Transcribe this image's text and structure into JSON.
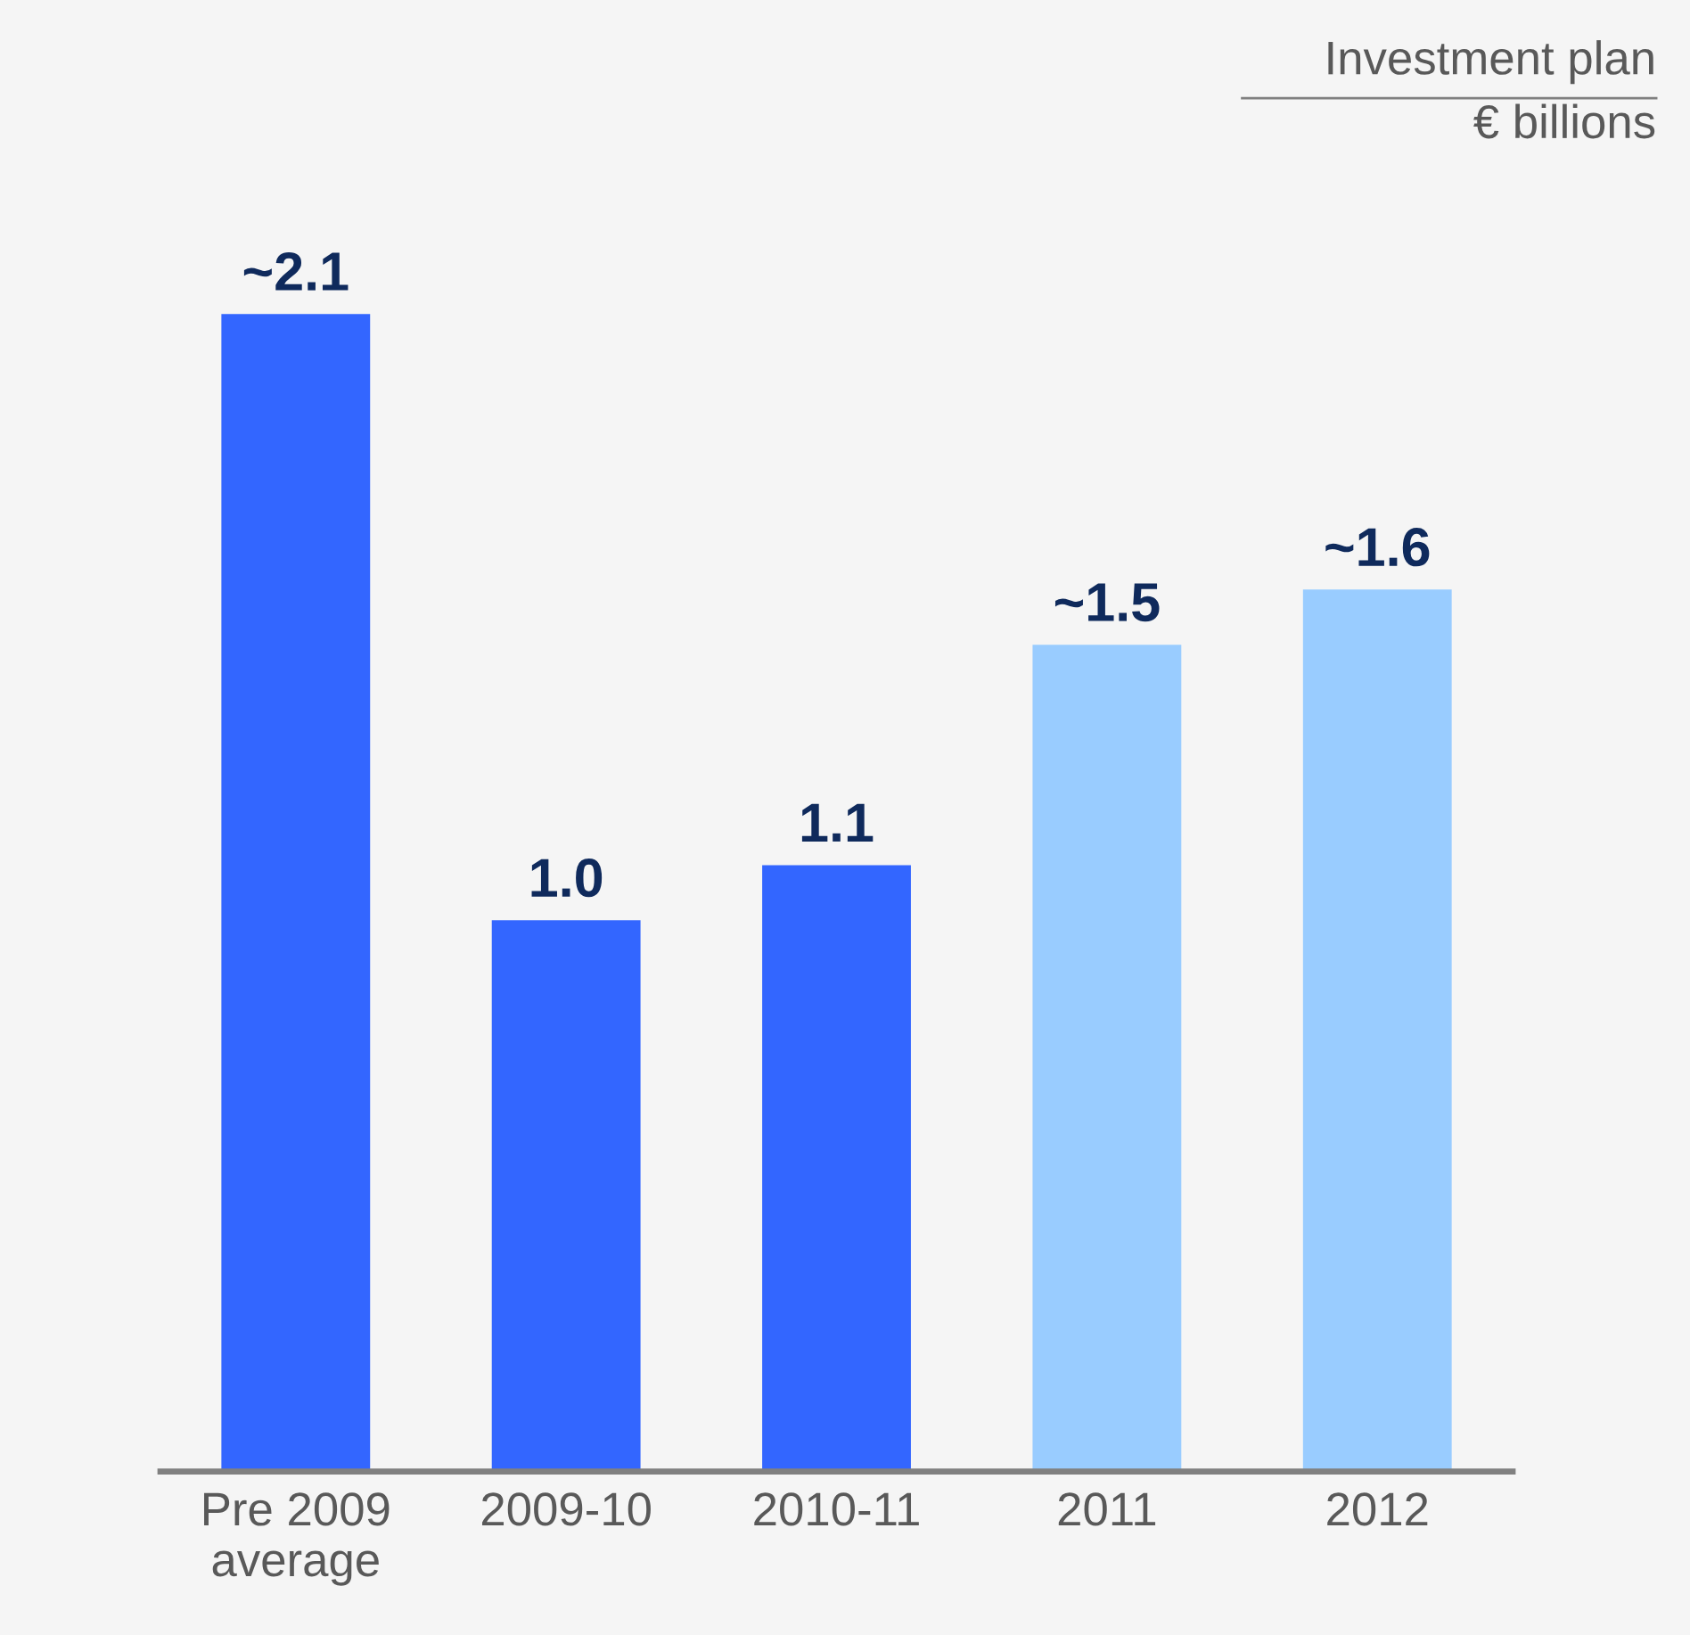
{
  "chart_data": {
    "type": "bar",
    "title": "Investment plan",
    "subtitle": "€ billions",
    "categories": [
      "Pre 2009\naverage",
      "2009-10",
      "2010-11",
      "2011",
      "2012"
    ],
    "values": [
      2.1,
      1.0,
      1.1,
      1.5,
      1.6
    ],
    "colors": [
      "#3366ff",
      "#3366ff",
      "#3366ff",
      "#99ccff",
      "#99ccff"
    ],
    "value_labels": [
      "~2.1",
      "1.0",
      "1.1",
      "~1.5",
      "~1.6"
    ],
    "grid": false,
    "legend": false
  }
}
